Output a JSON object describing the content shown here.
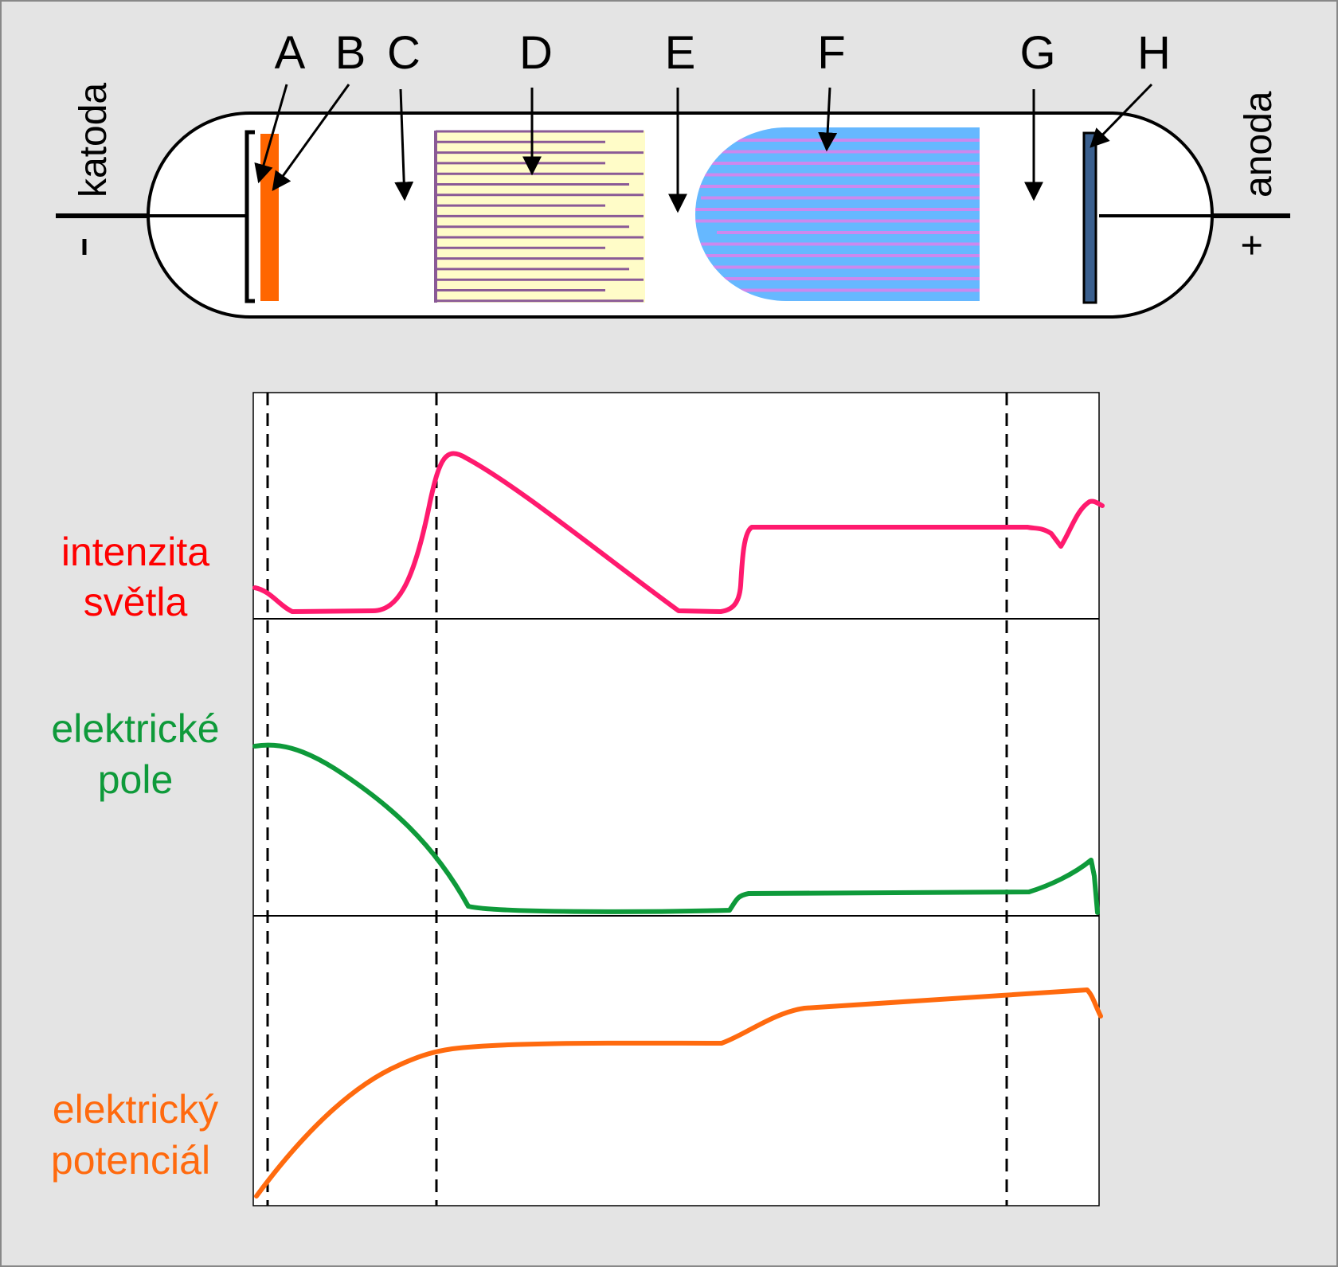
{
  "tube": {
    "letters": [
      "A",
      "B",
      "C",
      "D",
      "E",
      "F",
      "G",
      "H"
    ],
    "cathode_label": "katoda",
    "anode_label": "anoda",
    "minus_sign": "–",
    "plus_sign": "+",
    "colors": {
      "cathode_layer": "#ff6600",
      "anode": "#3a5f8e",
      "region_d_fill": "#fffcc8",
      "region_d_lines": "#8a5a96",
      "region_f_fill": "#66b8ff",
      "region_f_lines": "#cc88ee"
    }
  },
  "plots": {
    "light_label_1": "intenzita",
    "light_label_2": "světla",
    "field_label_1": "elektrické",
    "field_label_2": "pole",
    "potential_label_1": "elektrický",
    "potential_label_2": "potenciál",
    "colors": {
      "light": "#ff1a6e",
      "field": "#0e9a3a",
      "potential": "#ff6a0e",
      "light_label": "#ff0000",
      "field_label": "#0e9a3a",
      "potential_label": "#ff6a0e"
    }
  }
}
